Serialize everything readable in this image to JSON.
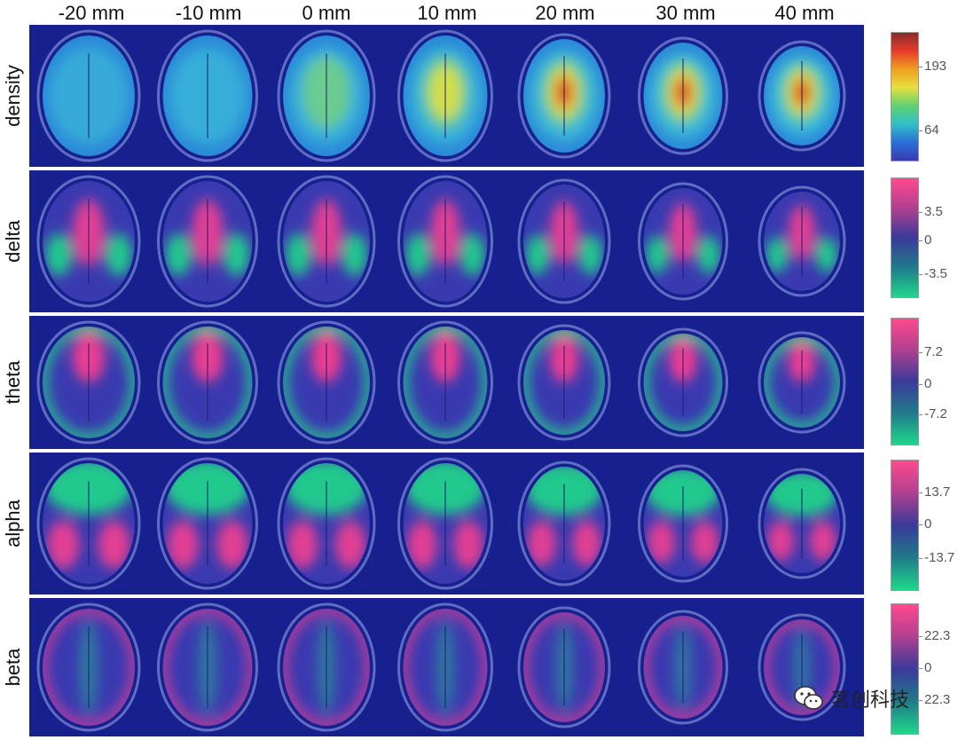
{
  "columns": [
    "-20 mm",
    "-10 mm",
    "0 mm",
    "10 mm",
    "20 mm",
    "30 mm",
    "40 mm"
  ],
  "rows": [
    {
      "label": "density",
      "ticks": [
        "193",
        "64"
      ],
      "colormap": "jet"
    },
    {
      "label": "delta",
      "ticks": [
        "3.5",
        "0",
        "-3.5"
      ],
      "colormap": "pink-blue-green"
    },
    {
      "label": "theta",
      "ticks": [
        "7.2",
        "0",
        "-7.2"
      ],
      "colormap": "pink-blue-green"
    },
    {
      "label": "alpha",
      "ticks": [
        "13.7",
        "0",
        "-13.7"
      ],
      "colormap": "pink-blue-green"
    },
    {
      "label": "beta",
      "ticks": [
        "22.3",
        "0",
        "22.3"
      ],
      "colormap": "pink-blue-green"
    }
  ],
  "watermark": {
    "text": "茗创科技",
    "icon": "wechat-icon"
  },
  "colors": {
    "background": "#16208f",
    "pink": "#ff3f8e",
    "green": "#1fd88a",
    "red": "#d0201a",
    "yellow": "#e8e040",
    "cyan": "#3fc0d8"
  }
}
